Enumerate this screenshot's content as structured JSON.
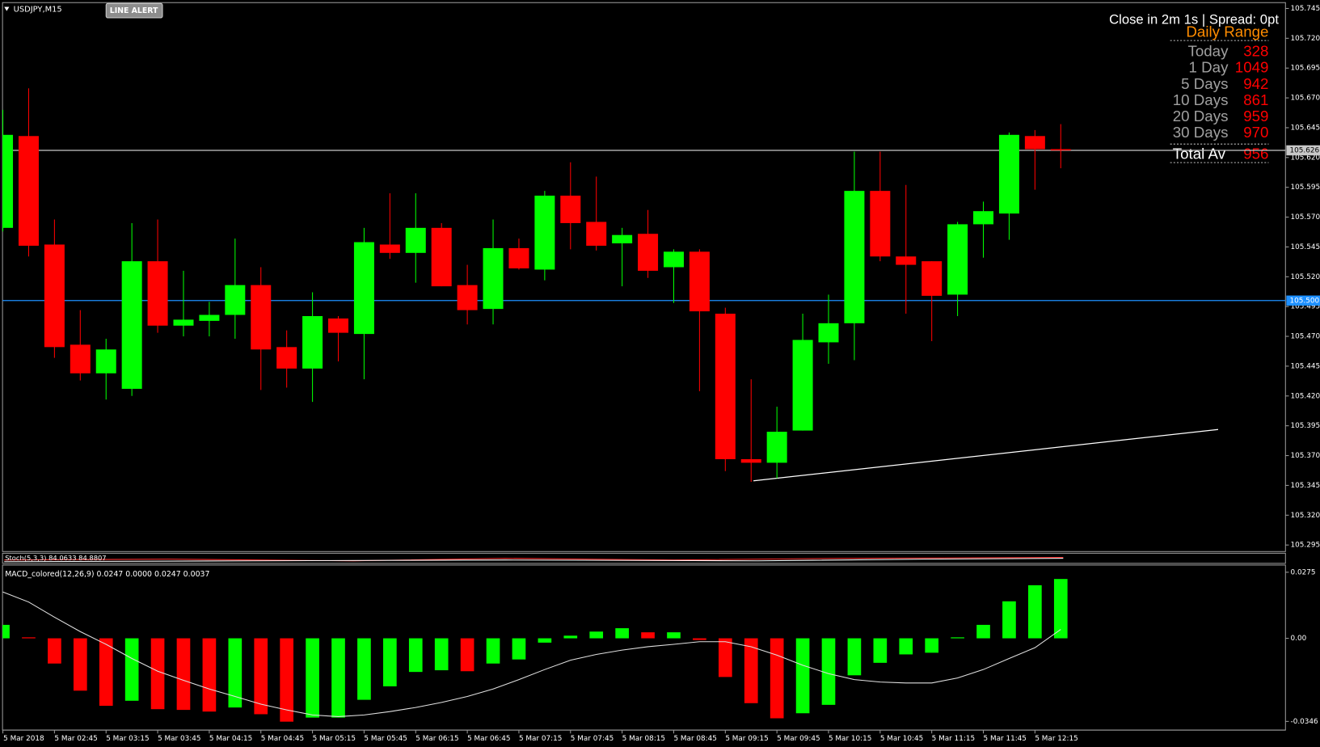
{
  "chart_data": [
    {
      "type": "candlestick",
      "title": "USDJPY,M15",
      "categories": [
        "5 Mar 2018",
        null,
        "5 Mar 02:45",
        null,
        "5 Mar 03:15",
        null,
        "5 Mar 03:45",
        null,
        "5 Mar 04:15",
        null,
        "5 Mar 04:45",
        null,
        "5 Mar 05:15",
        null,
        "5 Mar 05:45",
        null,
        "5 Mar 06:15",
        null,
        "5 Mar 06:45",
        null,
        "5 Mar 07:15",
        null,
        "5 Mar 07:45",
        null,
        "5 Mar 08:15",
        null,
        "5 Mar 08:45",
        null,
        "5 Mar 09:15",
        null,
        "5 Mar 09:45",
        null,
        "5 Mar 10:15",
        null,
        "5 Mar 10:45",
        null,
        "5 Mar 11:15",
        null,
        "5 Mar 11:45",
        null,
        "5 Mar 12:15",
        null
      ],
      "open": [
        105.561,
        105.638,
        105.547,
        105.463,
        105.439,
        105.426,
        105.533,
        105.479,
        105.483,
        105.488,
        105.513,
        105.461,
        105.443,
        105.485,
        105.472,
        105.547,
        105.54,
        105.561,
        105.513,
        105.493,
        105.544,
        105.526,
        105.588,
        105.566,
        105.548,
        105.556,
        105.528,
        105.541,
        105.489,
        105.367,
        105.364,
        105.391,
        105.465,
        105.481,
        105.592,
        105.537,
        105.533,
        105.505,
        105.564,
        105.573,
        105.638,
        105.627
      ],
      "high": [
        105.66,
        105.678,
        105.568,
        105.492,
        105.468,
        105.565,
        105.568,
        105.525,
        105.499,
        105.552,
        105.528,
        105.475,
        105.507,
        105.487,
        105.561,
        105.59,
        105.59,
        105.565,
        105.53,
        105.568,
        105.552,
        105.592,
        105.616,
        105.604,
        105.561,
        105.576,
        105.543,
        105.543,
        105.494,
        105.434,
        105.411,
        105.489,
        105.505,
        105.625,
        105.625,
        105.597,
        105.533,
        105.566,
        105.583,
        105.641,
        105.643,
        105.648
      ],
      "low": [
        105.558,
        105.537,
        105.452,
        105.433,
        105.417,
        105.42,
        105.473,
        105.47,
        105.47,
        105.468,
        105.425,
        105.427,
        105.415,
        105.449,
        105.434,
        105.535,
        105.515,
        105.512,
        105.48,
        105.48,
        105.526,
        105.517,
        105.543,
        105.542,
        105.512,
        105.519,
        105.498,
        105.424,
        105.357,
        105.348,
        105.351,
        105.391,
        105.447,
        105.45,
        105.533,
        105.489,
        105.466,
        105.487,
        105.536,
        105.551,
        105.593,
        105.611
      ],
      "close": [
        105.639,
        105.546,
        105.461,
        105.439,
        105.459,
        105.533,
        105.479,
        105.484,
        105.488,
        105.513,
        105.459,
        105.443,
        105.487,
        105.473,
        105.549,
        105.54,
        105.561,
        105.512,
        105.492,
        105.544,
        105.527,
        105.588,
        105.565,
        105.546,
        105.555,
        105.525,
        105.541,
        105.491,
        105.367,
        105.364,
        105.39,
        105.467,
        105.481,
        105.592,
        105.537,
        105.53,
        105.504,
        105.564,
        105.575,
        105.639,
        105.627,
        105.626
      ],
      "up_color": "#00ff00",
      "down_color": "#ff0000",
      "ylim": [
        105.2895,
        105.7499
      ],
      "yticks": [
        105.745,
        {
          "value": 105.72,
          "label": "105.720"
        },
        105.695,
        {
          "value": 105.67,
          "label": "105.670"
        },
        105.645,
        {
          "value": 105.62,
          "label": "105.620"
        },
        105.595,
        {
          "value": 105.57,
          "label": "105.570"
        },
        105.545,
        {
          "value": 105.52,
          "label": "105.520"
        },
        105.495,
        {
          "value": 105.47,
          "label": "105.470"
        },
        105.445,
        {
          "value": 105.42,
          "label": "105.420"
        },
        105.395,
        {
          "value": 105.37,
          "label": "105.370"
        },
        105.345,
        {
          "value": 105.32,
          "label": "105.320"
        },
        105.295
      ],
      "hlines": [
        {
          "value": 105.626,
          "label": "105.626",
          "color": "#c8c8c8"
        },
        {
          "value": 105.5,
          "label": "105.500",
          "color": "#1e90ff"
        }
      ],
      "grid": false
    },
    {
      "type": "bar",
      "title": "MACD_colored(12,26,9) 0.0247 0.0000 0.0247 0.0037",
      "values": [
        0.0056,
        0.0004,
        -0.0105,
        -0.0218,
        -0.0281,
        -0.026,
        -0.0295,
        -0.0298,
        -0.0305,
        -0.0288,
        -0.0316,
        -0.0347,
        -0.033,
        -0.033,
        -0.0256,
        -0.02,
        -0.014,
        -0.0133,
        -0.0137,
        -0.0105,
        -0.0088,
        -0.0018,
        0.0011,
        0.0028,
        0.0042,
        0.0025,
        0.0025,
        -0.0007,
        -0.0161,
        -0.027,
        -0.0333,
        -0.0312,
        -0.0277,
        -0.0154,
        -0.0102,
        -0.0067,
        -0.006,
        0.0004,
        0.0056,
        0.0154,
        0.0221,
        0.0247
      ],
      "colors": [
        "#00ff00",
        "#ff0000",
        "#ff0000",
        "#ff0000",
        "#ff0000",
        "#00ff00",
        "#ff0000",
        "#ff0000",
        "#ff0000",
        "#00ff00",
        "#ff0000",
        "#ff0000",
        "#00ff00",
        "#00ff00",
        "#00ff00",
        "#00ff00",
        "#00ff00",
        "#00ff00",
        "#ff0000",
        "#00ff00",
        "#00ff00",
        "#00ff00",
        "#00ff00",
        "#00ff00",
        "#00ff00",
        "#ff0000",
        "#00ff00",
        "#ff0000",
        "#ff0000",
        "#ff0000",
        "#ff0000",
        "#00ff00",
        "#00ff00",
        "#00ff00",
        "#00ff00",
        "#00ff00",
        "#00ff00",
        "#00ff00",
        "#00ff00",
        "#00ff00",
        "#00ff00",
        "#00ff00"
      ],
      "signal": {
        "color": "#e0e0e0",
        "values": [
          0.0193,
          0.0151,
          0.0088,
          0.0028,
          -0.0025,
          -0.0084,
          -0.0137,
          -0.0175,
          -0.0211,
          -0.0242,
          -0.0274,
          -0.0298,
          -0.0319,
          -0.0326,
          -0.0319,
          -0.0305,
          -0.0288,
          -0.0267,
          -0.0242,
          -0.0211,
          -0.0172,
          -0.013,
          -0.0091,
          -0.0067,
          -0.0049,
          -0.0035,
          -0.0025,
          -0.0014,
          -0.0014,
          -0.0035,
          -0.007,
          -0.0112,
          -0.0147,
          -0.0172,
          -0.0182,
          -0.0186,
          -0.0186,
          -0.0165,
          -0.013,
          -0.0084,
          -0.0039,
          0.0037
        ]
      },
      "ylim": [
        -0.0382,
        0.0298
      ],
      "yticks": [
        0.0275,
        {
          "value": 0,
          "label": "0.00"
        },
        -0.0346
      ],
      "grid": false
    }
  ],
  "stoch_window": {
    "title": "Stoch(5,3,3) 84.0633 84.8807"
  },
  "toolbar": {
    "button": "LINE ALERT"
  },
  "info_panel": {
    "countdown": "Close in 2m 1s | Spread: 0pt",
    "title": "Daily Range",
    "rows": [
      {
        "label": "Today",
        "value": 328
      },
      {
        "label": "1 Day",
        "value": 1049
      },
      {
        "label": "5 Days",
        "value": 942
      },
      {
        "label": "10 Days",
        "value": 861
      },
      {
        "label": "20 Days",
        "value": 959
      },
      {
        "label": "30 Days",
        "value": 970
      }
    ],
    "total": {
      "label": "Total Av",
      "value": 956
    }
  }
}
